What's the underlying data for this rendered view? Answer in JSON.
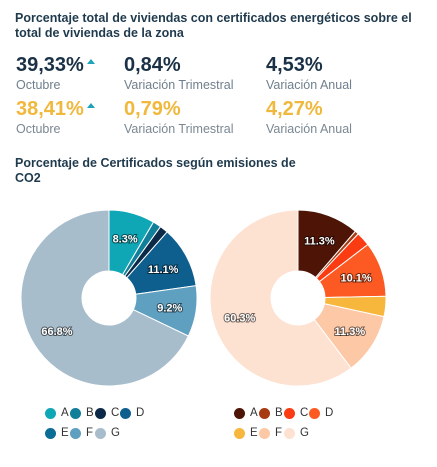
{
  "title": "Porcentaje total de viviendas con certificados energéticos sobre el total de viviendas de la zona",
  "stats": [
    {
      "value": "39,33%",
      "label": "Octubre",
      "trend": "up"
    },
    {
      "value": "0,84%",
      "label": "Variación Trimestral"
    },
    {
      "value": "4,53%",
      "label": "Variación Anual"
    },
    {
      "value": "38,41%",
      "label": "Octubre",
      "trend": "up"
    },
    {
      "value": "0,79%",
      "label": "Variación Trimestral"
    },
    {
      "value": "4,27%",
      "label": "Variación Anual"
    }
  ],
  "subtitle": "Porcentaje de Certificados según emisiones de CO2",
  "chart_data": [
    {
      "type": "pie",
      "categories": [
        "A",
        "B",
        "C",
        "D",
        "E",
        "F",
        "G"
      ],
      "values": [
        8.3,
        1.5,
        1.5,
        11.1,
        0.0,
        9.2,
        66.8
      ],
      "data_labels": [
        "8.3%",
        "",
        "",
        "11.1%",
        "",
        "9.2%",
        "66.8%"
      ],
      "colors": [
        "#0fa7b6",
        "#117e9a",
        "#0c2a48",
        "#0e5e8e",
        "#0b6d96",
        "#5f9fc0",
        "#a8bdcc"
      ],
      "legend_position": "bottom"
    },
    {
      "type": "pie",
      "categories": [
        "A",
        "B",
        "C",
        "D",
        "E",
        "F",
        "G"
      ],
      "values": [
        11.3,
        0.7,
        2.6,
        10.1,
        3.7,
        11.3,
        60.3
      ],
      "data_labels": [
        "11.3%",
        "",
        "",
        "10.1%",
        "",
        "11.3%",
        "60.3%"
      ],
      "colors": [
        "#4e1507",
        "#a83a12",
        "#fb3b12",
        "#fc5a22",
        "#f6b73c",
        "#fdc8a6",
        "#fde1d1"
      ],
      "legend_position": "bottom"
    }
  ]
}
